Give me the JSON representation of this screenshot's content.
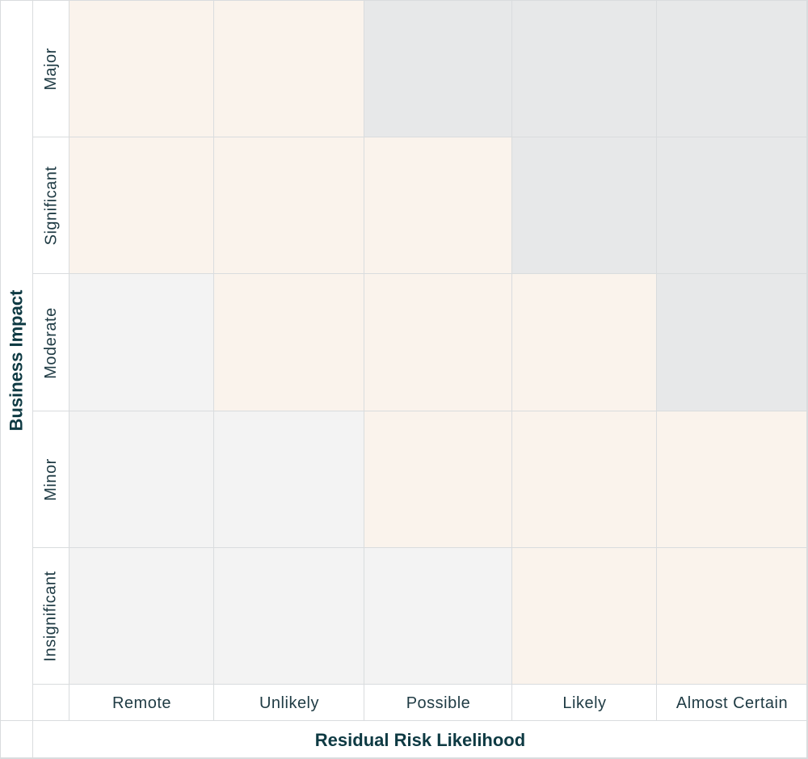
{
  "axes": {
    "y_title": "Business Impact",
    "x_title": "Residual Risk Likelihood"
  },
  "rows": [
    "Major",
    "Significant",
    "Moderate",
    "Minor",
    "Insignificant"
  ],
  "columns": [
    "Remote",
    "Unlikely",
    "Possible",
    "Likely",
    "Almost Certain"
  ],
  "levels": [
    [
      "medium",
      "medium",
      "high",
      "high",
      "high"
    ],
    [
      "medium",
      "medium",
      "medium",
      "high",
      "high"
    ],
    [
      "low",
      "medium",
      "medium",
      "medium",
      "high"
    ],
    [
      "low",
      "low",
      "medium",
      "medium",
      "medium"
    ],
    [
      "low",
      "low",
      "low",
      "medium",
      "medium"
    ]
  ],
  "colors": {
    "low": "#f3f3f3",
    "medium": "#faf3ec",
    "high": "#e7e8e9",
    "gridline": "#d9dcde",
    "text": "#1f3b44"
  }
}
